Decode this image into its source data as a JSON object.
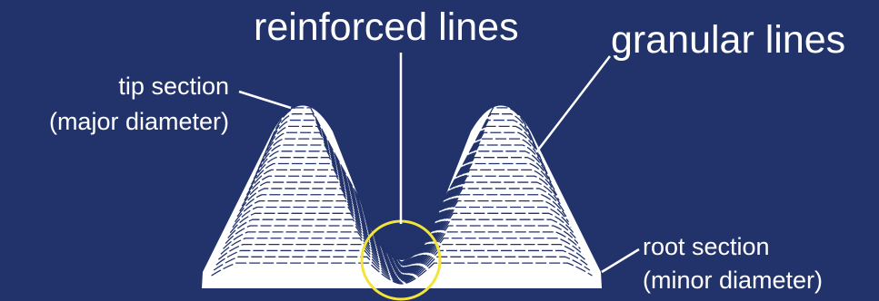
{
  "labels": {
    "reinforced": "reinforced lines",
    "granular": "granular lines",
    "tip_line1": "tip section",
    "tip_line2": "(major diameter)",
    "root_line1": "root section",
    "root_line2": "(minor diameter)"
  },
  "colors": {
    "background": "#22336b",
    "thread": "#ffffff",
    "hatch": "#22336b",
    "highlight_circle": "#f3e43a",
    "leader": "#ffffff"
  }
}
